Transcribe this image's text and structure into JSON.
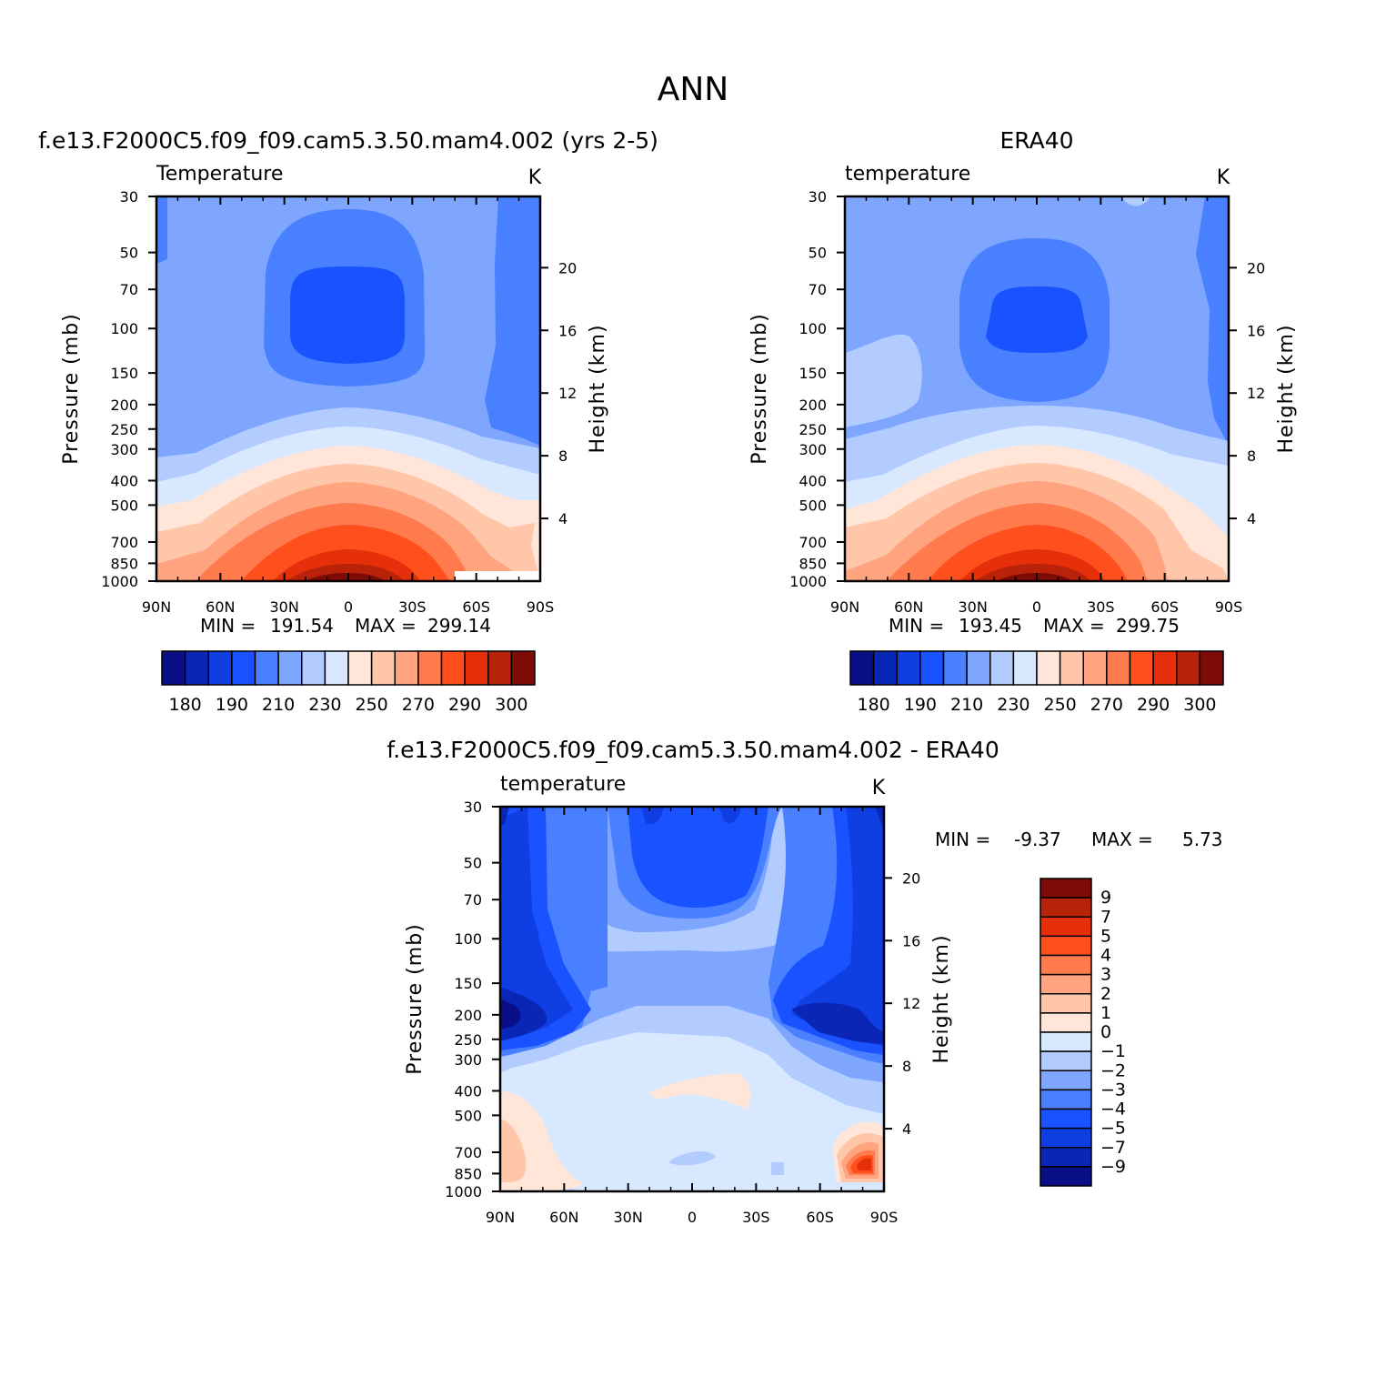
{
  "figure": {
    "title": "ANN",
    "colors": {
      "temperature_palette": [
        "#0a0f88",
        "#0a26b6",
        "#0f3fe2",
        "#1a52ff",
        "#4880ff",
        "#7ea6ff",
        "#b2ccff",
        "#d7e8ff",
        "#ffe6d8",
        "#ffc6aa",
        "#ffa47f",
        "#ff7a4c",
        "#ff4f1c",
        "#e5300b",
        "#b8230a",
        "#7d0b06"
      ],
      "difference_palette": [
        "#0a0f88",
        "#0a26b6",
        "#0f3fe2",
        "#1a52ff",
        "#4880ff",
        "#7ea6ff",
        "#b2ccff",
        "#d7e8ff",
        "#ffe6d8",
        "#ffc6aa",
        "#ffa47f",
        "#ff7a4c",
        "#ff4f1c",
        "#e5300b",
        "#b8230a",
        "#7d0b06"
      ]
    }
  },
  "chart_data": [
    {
      "type": "heatmap",
      "title": "f.e13.F2000C5.f09_f09.cam5.3.50.mam4.002 (yrs 2-5)",
      "variable": "Temperature",
      "units": "K",
      "xlabel": "",
      "ylabel": "Pressure (mb)",
      "ylabel_right": "Height (km)",
      "x_ticks": [
        "90N",
        "60N",
        "30N",
        "0",
        "30S",
        "60S",
        "90S"
      ],
      "y_ticks": [
        30,
        50,
        70,
        100,
        150,
        200,
        250,
        300,
        400,
        500,
        700,
        850,
        1000
      ],
      "y_ticks_right": [
        4,
        8,
        12,
        16,
        20
      ],
      "y_scale": "log",
      "min": "191.54",
      "max": "299.14",
      "colorbar_labels": [
        180,
        190,
        210,
        230,
        250,
        270,
        290,
        300
      ],
      "contour_levels": [
        180,
        185,
        190,
        200,
        210,
        220,
        230,
        240,
        250,
        260,
        270,
        280,
        290,
        295,
        300
      ],
      "grid": false,
      "legend_position": "below"
    },
    {
      "type": "heatmap",
      "title": "ERA40",
      "variable": "temperature",
      "units": "K",
      "xlabel": "",
      "ylabel": "Pressure (mb)",
      "ylabel_right": "Height (km)",
      "x_ticks": [
        "90N",
        "60N",
        "30N",
        "0",
        "30S",
        "60S",
        "90S"
      ],
      "y_ticks": [
        30,
        50,
        70,
        100,
        150,
        200,
        250,
        300,
        400,
        500,
        700,
        850,
        1000
      ],
      "y_ticks_right": [
        4,
        8,
        12,
        16,
        20
      ],
      "y_scale": "log",
      "min": "193.45",
      "max": "299.75",
      "colorbar_labels": [
        180,
        190,
        210,
        230,
        250,
        270,
        290,
        300
      ],
      "contour_levels": [
        180,
        185,
        190,
        200,
        210,
        220,
        230,
        240,
        250,
        260,
        270,
        280,
        290,
        295,
        300
      ],
      "grid": false,
      "legend_position": "below"
    },
    {
      "type": "heatmap",
      "title": "f.e13.F2000C5.f09_f09.cam5.3.50.mam4.002 - ERA40",
      "variable": "temperature",
      "units": "K",
      "xlabel": "",
      "ylabel": "Pressure (mb)",
      "ylabel_right": "Height (km)",
      "x_ticks": [
        "90N",
        "60N",
        "30N",
        "0",
        "30S",
        "60S",
        "90S"
      ],
      "y_ticks": [
        30,
        50,
        70,
        100,
        150,
        200,
        250,
        300,
        400,
        500,
        700,
        850,
        1000
      ],
      "y_ticks_right": [
        4,
        8,
        12,
        16,
        20
      ],
      "y_scale": "log",
      "min": "-9.37",
      "max": "5.73",
      "colorbar_labels": [
        9,
        7,
        5,
        4,
        3,
        2,
        1,
        0,
        -1,
        -2,
        -3,
        -4,
        -5,
        -7,
        -9
      ],
      "contour_levels": [
        -9,
        -7,
        -5,
        -4,
        -3,
        -2,
        -1,
        0,
        1,
        2,
        3,
        4,
        5,
        7,
        9
      ],
      "grid": false,
      "legend_position": "right"
    }
  ]
}
